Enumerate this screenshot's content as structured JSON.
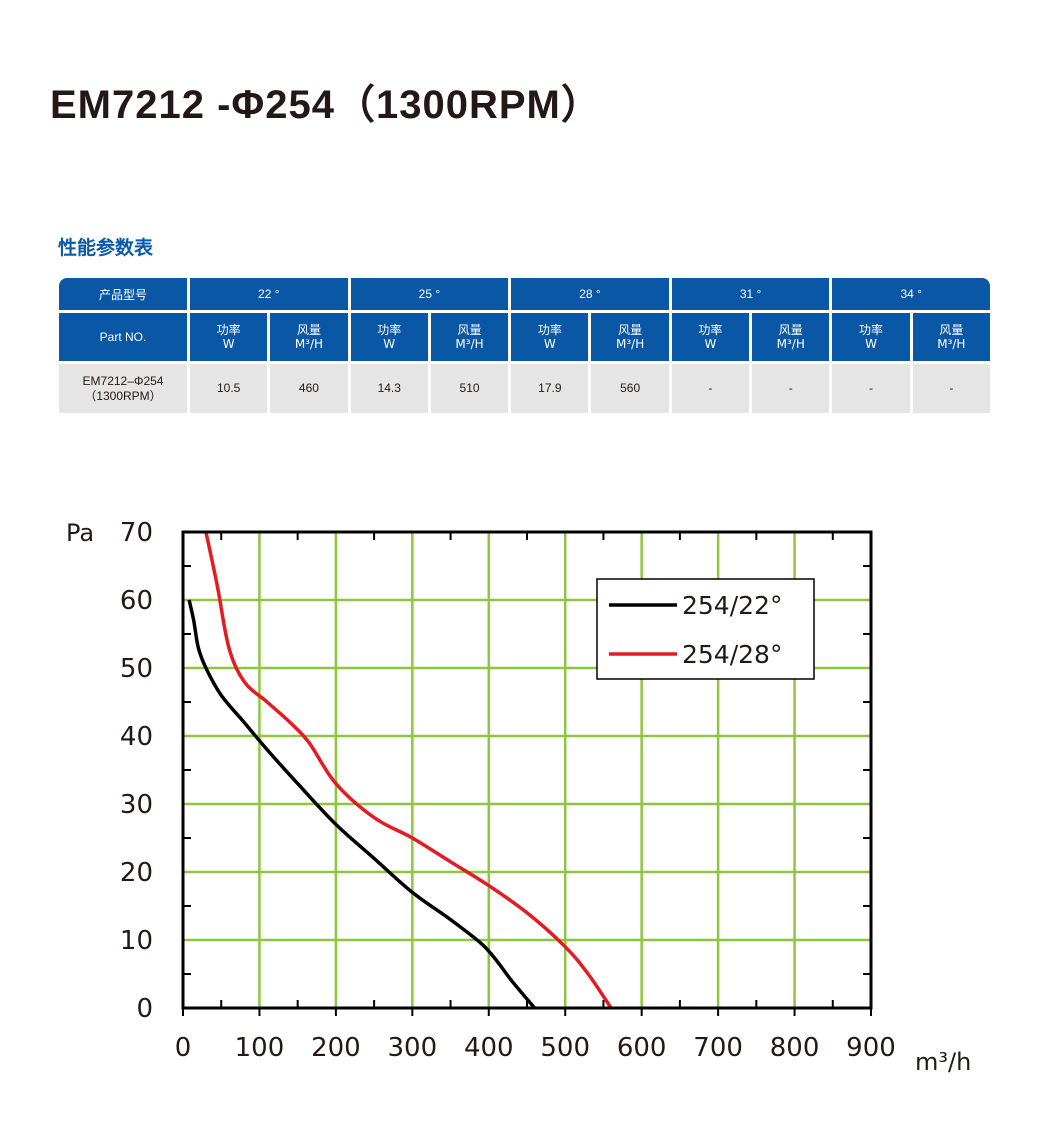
{
  "page": {
    "title": "EM7212 -Φ254（1300RPM）",
    "subtitle": "性能参数表"
  },
  "table": {
    "header_model": "产品型号",
    "angles": [
      "22 °",
      "25 °",
      "28 °",
      "31 °",
      "34 °"
    ],
    "part_no_label": "Part NO.",
    "power_label": [
      "功率",
      "W"
    ],
    "air_label": [
      "风量",
      "M³/H"
    ],
    "row": {
      "model": [
        "EM7212–Φ254",
        "（1300RPM）"
      ],
      "values": [
        "10.5",
        "460",
        "14.3",
        "510",
        "17.9",
        "560",
        "-",
        "-",
        "-",
        "-"
      ]
    }
  },
  "chart_data": {
    "type": "line",
    "xlabel": "m³/h",
    "ylabel": "Pa",
    "xlim": [
      0,
      900
    ],
    "ylim": [
      0,
      70
    ],
    "xticks": [
      "0",
      "100",
      "200",
      "300",
      "400",
      "500",
      "600",
      "700",
      "800",
      "900"
    ],
    "yticks": [
      "0",
      "10",
      "20",
      "30",
      "40",
      "50",
      "60",
      "70"
    ],
    "grid": true,
    "legend_position": "top-right",
    "series": [
      {
        "name": "254/22°",
        "color": "#000000",
        "x": [
          8,
          14,
          20,
          30,
          50,
          80,
          110,
          150,
          200,
          250,
          300,
          350,
          390,
          410,
          430,
          460
        ],
        "y": [
          60,
          57,
          53,
          50,
          46,
          42,
          38,
          33,
          27,
          22,
          17,
          13,
          9.5,
          7,
          4,
          0
        ]
      },
      {
        "name": "254/28°",
        "color": "#e31b23",
        "x": [
          30,
          45,
          60,
          80,
          110,
          140,
          165,
          200,
          250,
          300,
          350,
          400,
          450,
          500,
          530,
          560
        ],
        "y": [
          70,
          62,
          53,
          48,
          45,
          42,
          39,
          33,
          28,
          25,
          21.5,
          18,
          14,
          9,
          5,
          0
        ]
      }
    ]
  }
}
